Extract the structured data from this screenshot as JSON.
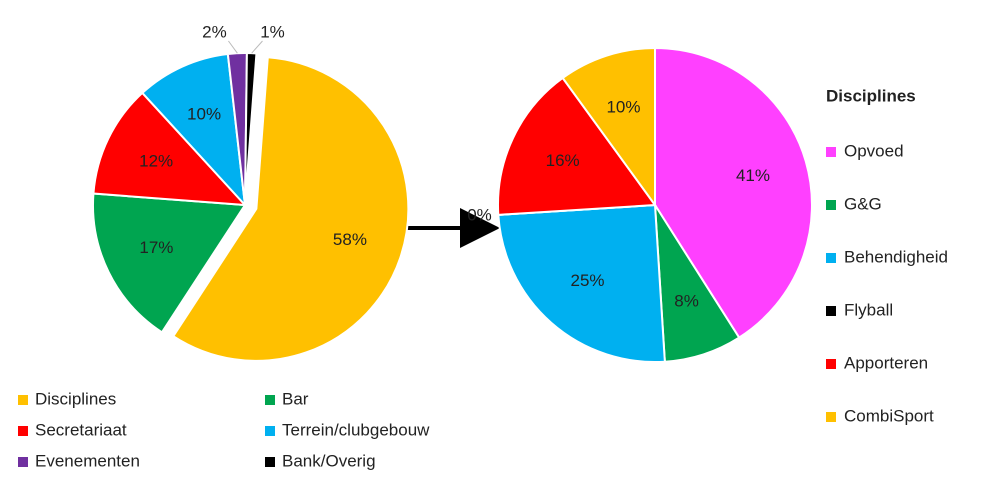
{
  "chart_data": [
    {
      "type": "pie",
      "categories": [
        "Disciplines",
        "Bar",
        "Secretariaat",
        "Terrein/clubgebouw",
        "Evenementen",
        "Bank/Overig"
      ],
      "values": [
        58,
        17,
        12,
        10,
        2,
        1
      ],
      "colors": [
        "#ffc000",
        "#00a550",
        "#ff0000",
        "#00b0f0",
        "#7030a0",
        "#000000"
      ],
      "legend": "bottom"
    },
    {
      "type": "pie",
      "legend_title": "Disciplines",
      "categories": [
        "Opvoed",
        "G&G",
        "Behendigheid",
        "Flyball",
        "Apporteren",
        "CombiSport"
      ],
      "values": [
        41,
        8,
        25,
        0,
        16,
        10
      ],
      "colors": [
        "#ff40ff",
        "#00a550",
        "#00b0f0",
        "#000000",
        "#ff0000",
        "#ffc000"
      ],
      "legend": "right"
    }
  ]
}
